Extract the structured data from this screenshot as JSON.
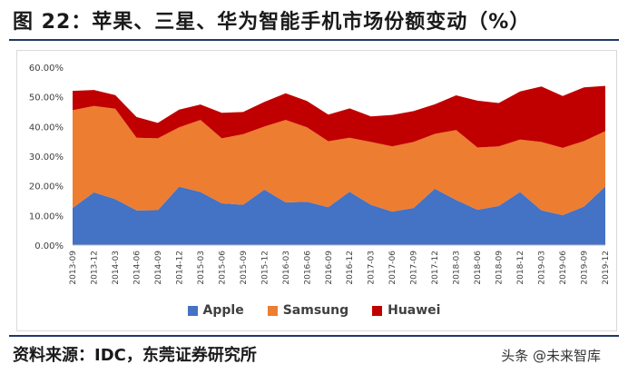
{
  "header": {
    "title": "图 22：苹果、三星、华为智能手机市场份额变动（%）"
  },
  "footer": {
    "source": "资料来源：IDC，东莞证券研究所",
    "watermark": "头条 @未来智库"
  },
  "chart_data": {
    "type": "area",
    "stacked": true,
    "title": "",
    "xlabel": "",
    "ylabel": "",
    "ylim": [
      0,
      60
    ],
    "y_ticks": [
      "0.00%",
      "10.00%",
      "20.00%",
      "30.00%",
      "40.00%",
      "50.00%",
      "60.00%"
    ],
    "legend_position": "bottom",
    "grid": false,
    "categories": [
      "2013-09",
      "2013-12",
      "2014-03",
      "2014-06",
      "2014-09",
      "2014-12",
      "2015-03",
      "2015-06",
      "2015-09",
      "2015-12",
      "2016-03",
      "2016-06",
      "2016-09",
      "2016-12",
      "2017-03",
      "2017-06",
      "2017-09",
      "2017-12",
      "2018-03",
      "2018-06",
      "2018-09",
      "2018-12",
      "2019-03",
      "2019-06",
      "2019-09",
      "2019-12"
    ],
    "series": [
      {
        "name": "Apple",
        "color": "#4472c4",
        "values": [
          12.5,
          17.8,
          15.5,
          11.7,
          11.8,
          19.7,
          17.9,
          14.1,
          13.6,
          18.7,
          14.4,
          14.6,
          12.8,
          18.0,
          13.6,
          11.3,
          12.5,
          19.0,
          15.2,
          11.9,
          13.2,
          17.9,
          11.7,
          10.1,
          13.0,
          19.8
        ]
      },
      {
        "name": "Samsung",
        "color": "#ed7d31",
        "values": [
          33.0,
          29.1,
          30.5,
          24.5,
          24.2,
          20.0,
          24.3,
          21.9,
          23.8,
          21.3,
          27.8,
          25.1,
          22.2,
          18.2,
          21.2,
          22.0,
          22.3,
          18.5,
          23.6,
          21.0,
          20.1,
          17.7,
          23.1,
          22.7,
          22.1,
          18.6
        ]
      },
      {
        "name": "Huawei",
        "color": "#c00000",
        "values": [
          6.5,
          5.4,
          4.6,
          7.0,
          5.2,
          6.0,
          5.2,
          8.6,
          7.5,
          8.3,
          9.0,
          8.9,
          9.0,
          9.9,
          8.6,
          10.6,
          10.4,
          10.0,
          11.7,
          15.8,
          14.6,
          16.2,
          18.7,
          17.5,
          18.1,
          15.3
        ]
      }
    ]
  }
}
